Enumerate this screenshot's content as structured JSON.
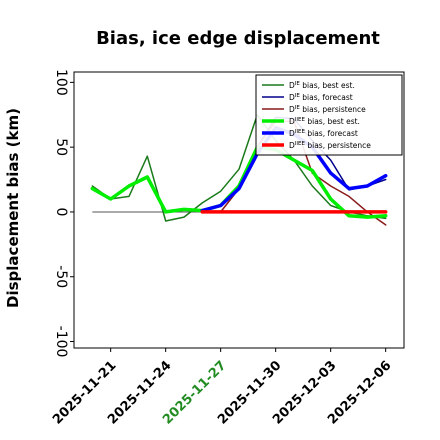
{
  "chart_data": {
    "type": "line",
    "title": "Bias, ice edge displacement",
    "xlabel": "",
    "ylabel": "Displacement bias (km)",
    "x": [
      "2025-11-20",
      "2025-11-21",
      "2025-11-22",
      "2025-11-23",
      "2025-11-24",
      "2025-11-25",
      "2025-11-26",
      "2025-11-27",
      "2025-11-28",
      "2025-11-29",
      "2025-11-30",
      "2025-12-01",
      "2025-12-02",
      "2025-12-03",
      "2025-12-04",
      "2025-12-05",
      "2025-12-06"
    ],
    "xlim": [
      "2025-11-19",
      "2025-12-07"
    ],
    "ylim": [
      -105,
      108
    ],
    "yticks": [
      100,
      50,
      0,
      -50,
      -100
    ],
    "xticks": [
      "2025-11-21",
      "2025-11-24",
      "2025-11-27",
      "2025-11-30",
      "2025-12-03",
      "2025-12-06"
    ],
    "xtick_colors": [
      "#000000",
      "#000000",
      "#228B22",
      "#000000",
      "#000000",
      "#000000"
    ],
    "zero_line": true,
    "legend_position": "top-right",
    "series": [
      {
        "name": "D^IE bias, best est.",
        "color": "#1a7a1a",
        "width": 1.5,
        "values": [
          20,
          10,
          12,
          43,
          -7,
          -4,
          7,
          16,
          33,
          75,
          55,
          40,
          20,
          5,
          0,
          -3,
          -5
        ]
      },
      {
        "name": "D^IE bias, forecast",
        "color": "#00008b",
        "width": 1.5,
        "values": [
          null,
          null,
          null,
          null,
          null,
          null,
          0,
          5,
          18,
          50,
          73,
          72,
          55,
          40,
          17,
          20,
          25
        ]
      },
      {
        "name": "D^IE bias, persistence",
        "color": "#8b1a1a",
        "width": 1.5,
        "values": [
          null,
          null,
          null,
          null,
          null,
          null,
          0,
          0,
          18,
          50,
          70,
          70,
          30,
          20,
          12,
          0,
          -10
        ]
      },
      {
        "name": "D^IIEE bias, best est.",
        "color": "#00ee00",
        "width": 3.5,
        "values": [
          18,
          10,
          20,
          27,
          0,
          2,
          1,
          5,
          20,
          50,
          48,
          40,
          32,
          10,
          -3,
          -4,
          -3
        ]
      },
      {
        "name": "D^IIEE bias, forecast",
        "color": "#0000ff",
        "width": 3.5,
        "values": [
          null,
          null,
          null,
          null,
          null,
          null,
          1,
          5,
          18,
          45,
          65,
          60,
          50,
          30,
          18,
          20,
          28
        ]
      },
      {
        "name": "D^IIEE bias, persistence",
        "color": "#ff0000",
        "width": 3.5,
        "values": [
          null,
          null,
          null,
          null,
          null,
          null,
          0,
          0,
          0,
          0,
          0,
          0,
          0,
          0,
          0,
          0,
          0
        ]
      }
    ],
    "legend": [
      {
        "sup": "IE",
        "text": "bias, best est.",
        "color": "#1a7a1a",
        "width": 1.5
      },
      {
        "sup": "IE",
        "text": "bias, forecast",
        "color": "#00008b",
        "width": 1.5
      },
      {
        "sup": "IE",
        "text": "bias, persistence",
        "color": "#8b1a1a",
        "width": 1.5
      },
      {
        "sup": "IIEE",
        "text": "bias, best est.",
        "color": "#00ee00",
        "width": 3.5
      },
      {
        "sup": "IIEE",
        "text": "bias, forecast",
        "color": "#0000ff",
        "width": 3.5
      },
      {
        "sup": "IIEE",
        "text": "bias, persistence",
        "color": "#ff0000",
        "width": 3.5
      }
    ]
  }
}
